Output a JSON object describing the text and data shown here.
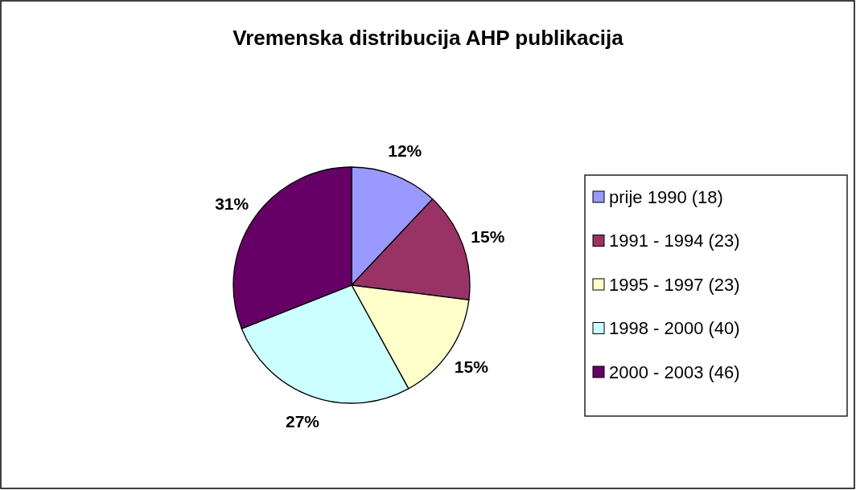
{
  "chart_data": {
    "type": "pie",
    "title": "Vremenska distribucija AHP publikacija",
    "categories": [
      "prije 1990 (18)",
      "1991 - 1994 (23)",
      "1995 - 1997 (23)",
      "1998 - 2000 (40)",
      "2000 - 2003 (46)"
    ],
    "values": [
      12,
      15,
      15,
      27,
      31
    ],
    "colors": [
      "#9999ff",
      "#993366",
      "#ffffcc",
      "#ccffff",
      "#660066"
    ],
    "value_labels": [
      "12%",
      "15%",
      "15%",
      "27%",
      "31%"
    ],
    "legend": "right"
  }
}
